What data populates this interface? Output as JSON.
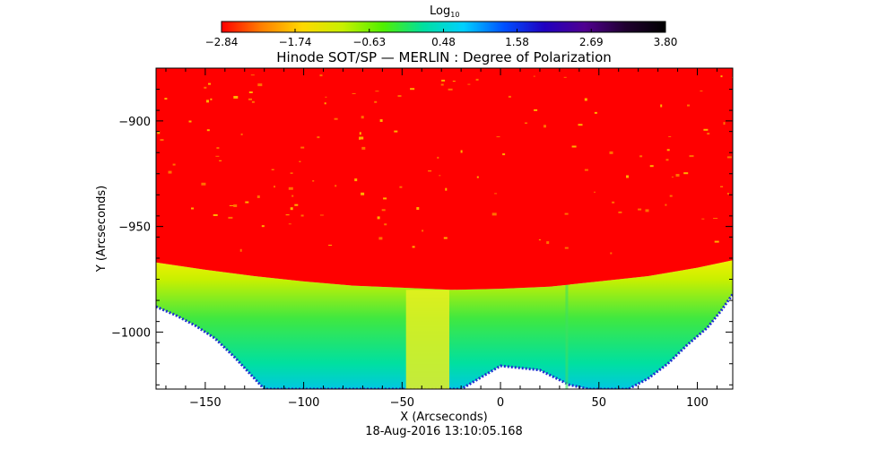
{
  "chart_data": {
    "type": "heatmap",
    "title": "Hinode SOT/SP — MERLIN : Degree of Polarization",
    "xlabel": "X (Arcseconds)",
    "ylabel": "Y (Arcseconds)",
    "timestamp": "18-Aug-2016 13:10:05.168",
    "xlim": [
      -175,
      118
    ],
    "ylim": [
      -1027,
      -875
    ],
    "xticks": [
      -150,
      -100,
      -50,
      0,
      50,
      100
    ],
    "xtick_labels": [
      "−150",
      "−100",
      "−50",
      "0",
      "50",
      "100"
    ],
    "yticks": [
      -900,
      -950,
      -1000
    ],
    "ytick_labels": [
      "−900",
      "−950",
      "−1000"
    ],
    "colorbar": {
      "title": "Log",
      "title_subscript": "10",
      "min": -2.84,
      "max": 3.8,
      "ticks": [
        -2.84,
        -1.74,
        -0.63,
        0.48,
        1.58,
        2.69,
        3.8
      ],
      "tick_labels": [
        "−2.84",
        "−1.74",
        "−0.63",
        "0.48",
        "1.58",
        "2.69",
        "3.80"
      ],
      "colors": [
        "#ff0000",
        "#ff8000",
        "#ffd800",
        "#c8f000",
        "#50f000",
        "#00e0a0",
        "#00d0ff",
        "#0050ff",
        "#2000c0",
        "#500090",
        "#200030",
        "#000000"
      ]
    },
    "limb_boundary": {
      "x": [
        -175,
        -150,
        -125,
        -100,
        -75,
        -50,
        -25,
        0,
        25,
        50,
        75,
        100,
        118
      ],
      "y": [
        -967,
        -970.5,
        -973.5,
        -976,
        -978,
        -979,
        -980,
        -979.5,
        -978.5,
        -976,
        -973.5,
        -969.5,
        -966
      ]
    },
    "offlimb_edge": {
      "x": [
        -175,
        -165,
        -155,
        -145,
        -135,
        -125,
        -120,
        -50,
        -20,
        0,
        20,
        35,
        45,
        55,
        65,
        75,
        85,
        95,
        105,
        112,
        118
      ],
      "y": [
        -988,
        -992,
        -997,
        -1003,
        -1012,
        -1022,
        -1027,
        -1027,
        -1027,
        -1016,
        -1018,
        -1025,
        -1027,
        -1027,
        -1027,
        -1022,
        -1015,
        -1006,
        -998,
        -990,
        -982
      ]
    }
  }
}
